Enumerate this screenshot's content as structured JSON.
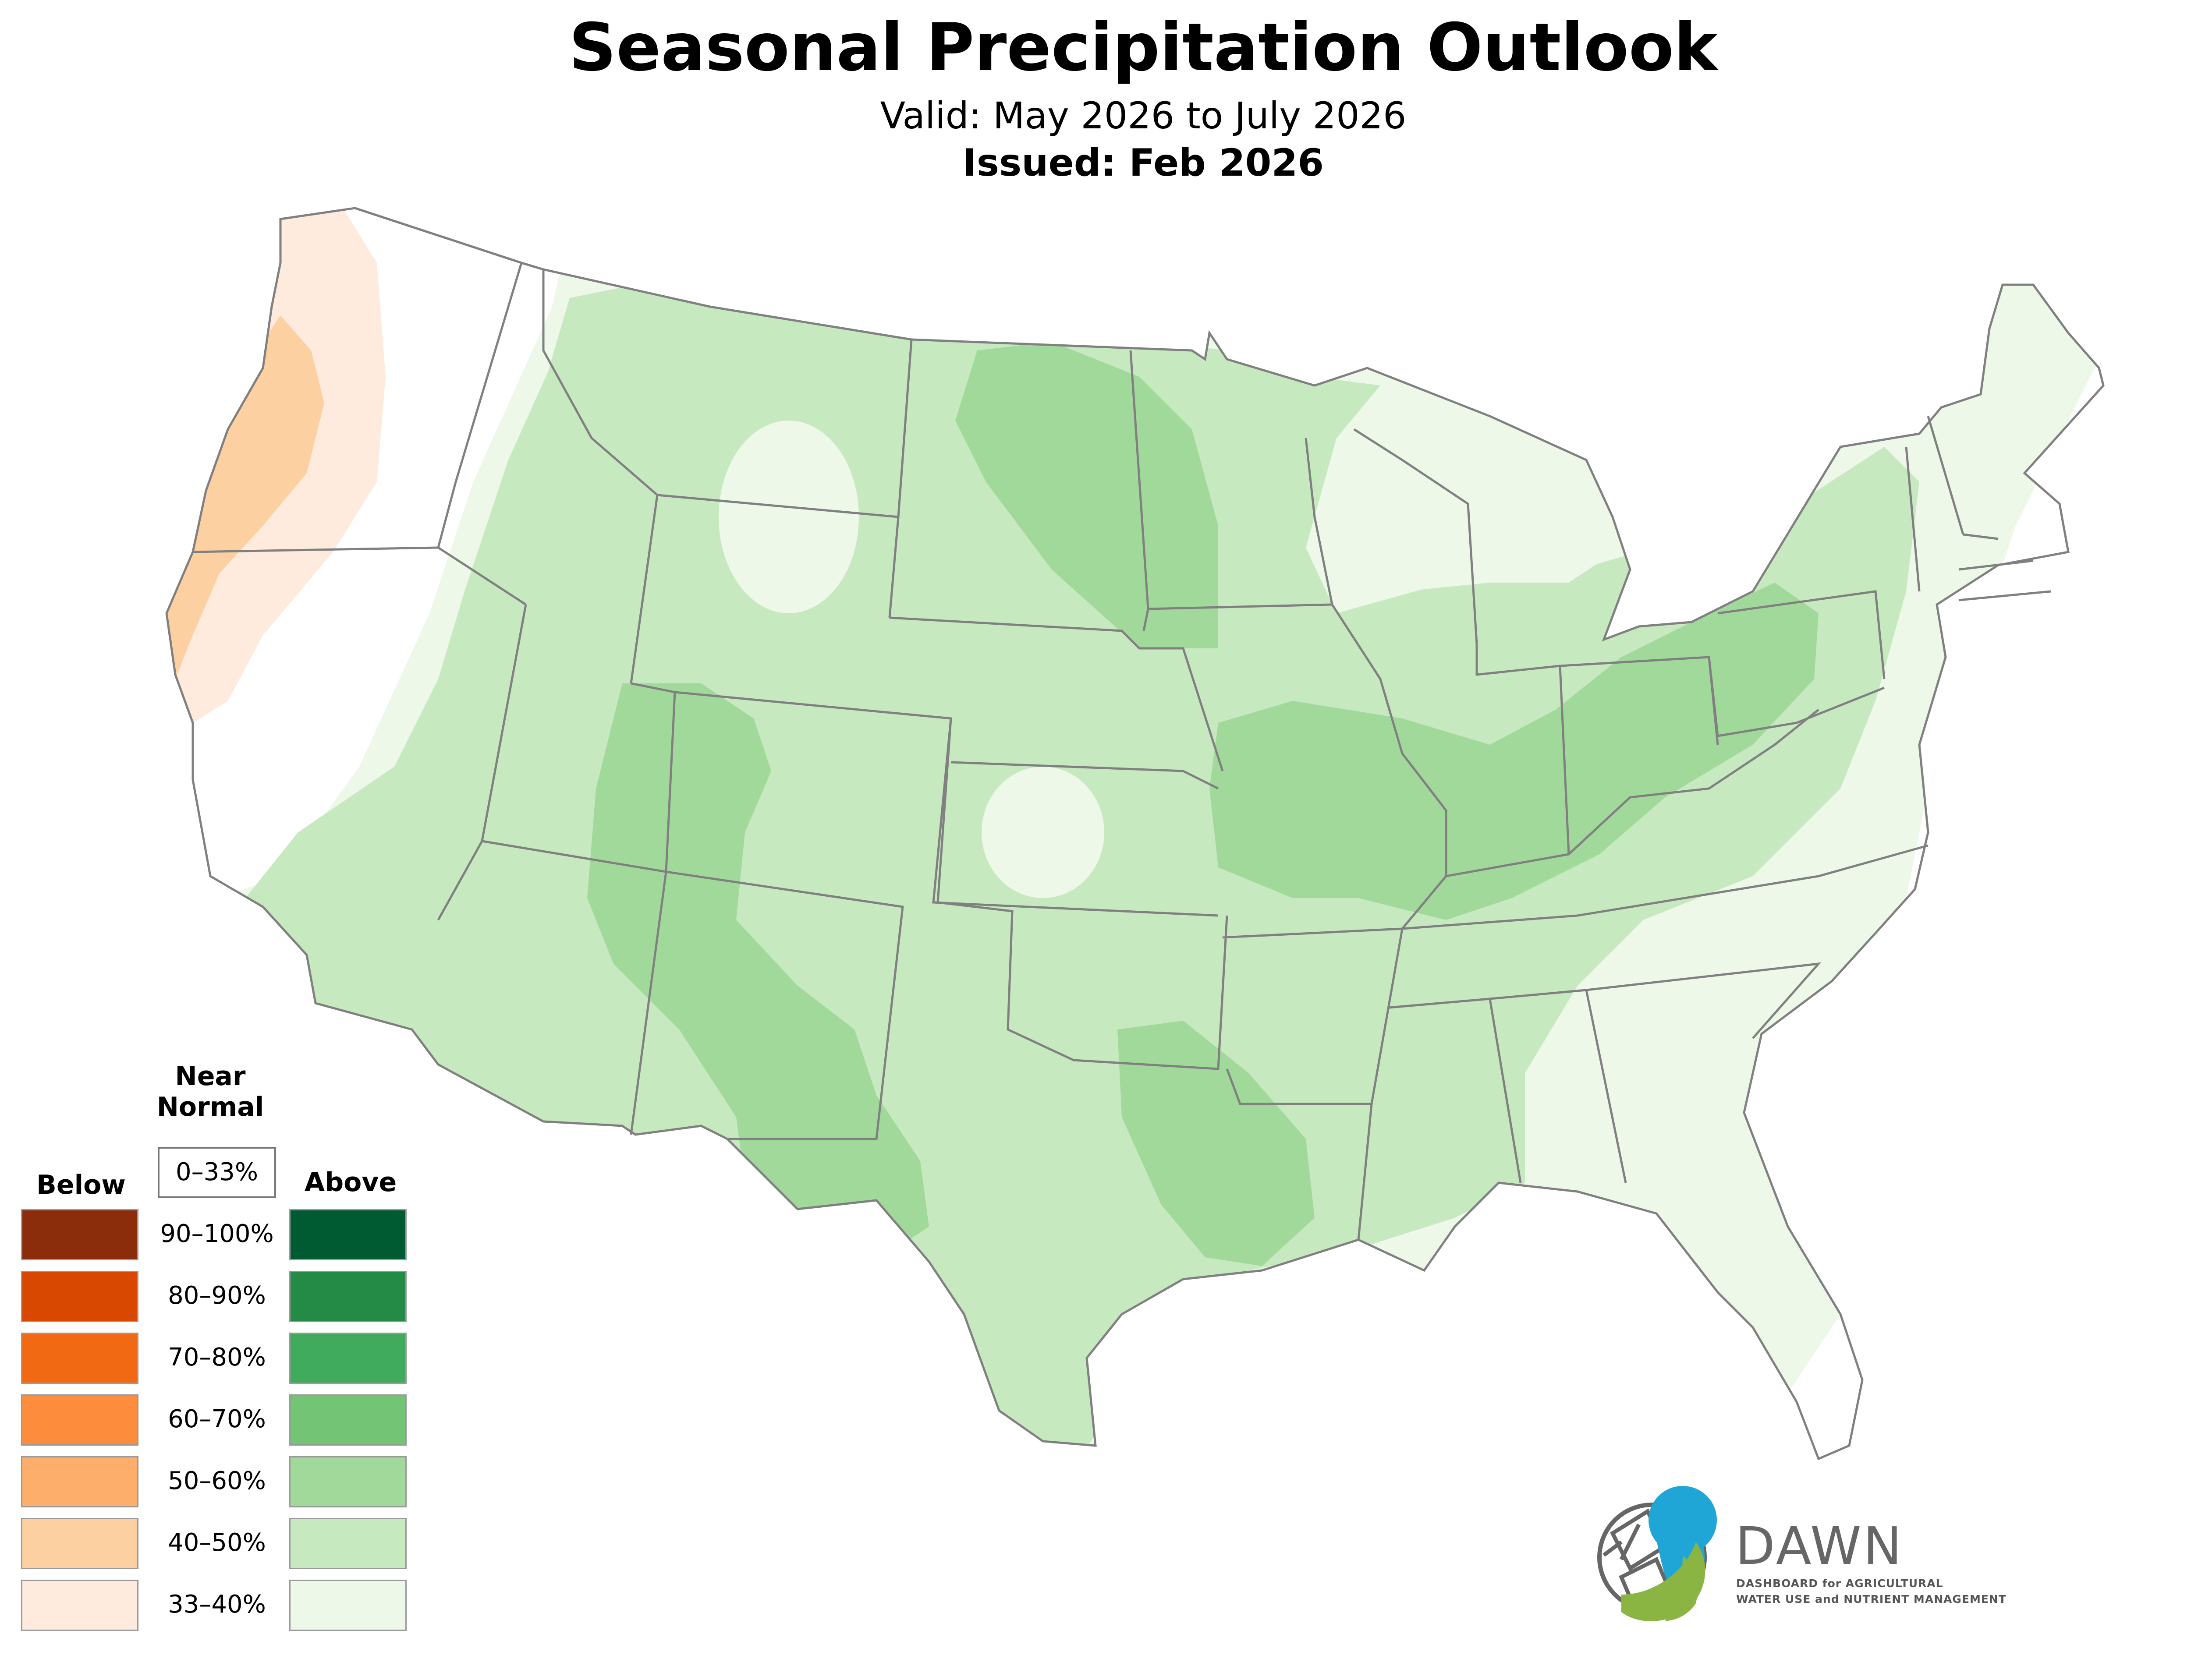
{
  "header": {
    "title": "Seasonal Precipitation Outlook",
    "valid": "Valid: May 2026 to July 2026",
    "issued": "Issued: Feb 2026"
  },
  "legend": {
    "near_normal_label": "Near Normal",
    "near_normal_range": "0–33%",
    "below_label": "Below",
    "above_label": "Above",
    "ranges": [
      "90–100%",
      "80–90%",
      "70–80%",
      "60–70%",
      "50–60%",
      "40–50%",
      "33–40%"
    ],
    "below_colors": [
      "#8b2d0a",
      "#d94801",
      "#f16913",
      "#fd8d3c",
      "#fdae6b",
      "#fdd0a2",
      "#feebdd"
    ],
    "above_colors": [
      "#005a32",
      "#238b45",
      "#41ab5d",
      "#74c476",
      "#a1d99b",
      "#c7e9c0",
      "#edf8e9"
    ]
  },
  "logo": {
    "name": "DAWN",
    "tagline_1": "DASHBOARD for AGRICULTURAL",
    "tagline_2": "WATER USE and NUTRIENT MANAGEMENT",
    "colors": {
      "blue": "#1fa5d6",
      "green": "#8ab542",
      "gray": "#666666"
    }
  },
  "map_data": {
    "type": "choropleth-contour",
    "region": "Contiguous United States",
    "variable": "Precipitation probability",
    "categories": {
      "above_33_40": "#edf8e9",
      "above_40_50": "#c7e9c0",
      "above_50_60": "#a1d99b",
      "below_33_40": "#feebdd",
      "below_40_50": "#fdd0a2"
    },
    "regions_described": [
      {
        "area": "Pacific Northwest / Northern California coast",
        "category": "below_40_50"
      },
      {
        "area": "Western Washington / Oregon / N. California margin",
        "category": "below_33_40"
      },
      {
        "area": "Great Basin / Intermountain West / Northern Plains",
        "category": "above_40_50"
      },
      {
        "area": "Four Corners / New Mexico / West Texas",
        "category": "above_50_60"
      },
      {
        "area": "North/South Dakota",
        "category": "above_50_60"
      },
      {
        "area": "Mid-Mississippi / Ohio Valley",
        "category": "above_50_60"
      },
      {
        "area": "East Texas / Louisiana",
        "category": "above_50_60"
      },
      {
        "area": "Wisconsin / Michigan / Southeast / New England",
        "category": "above_33_40"
      }
    ]
  }
}
